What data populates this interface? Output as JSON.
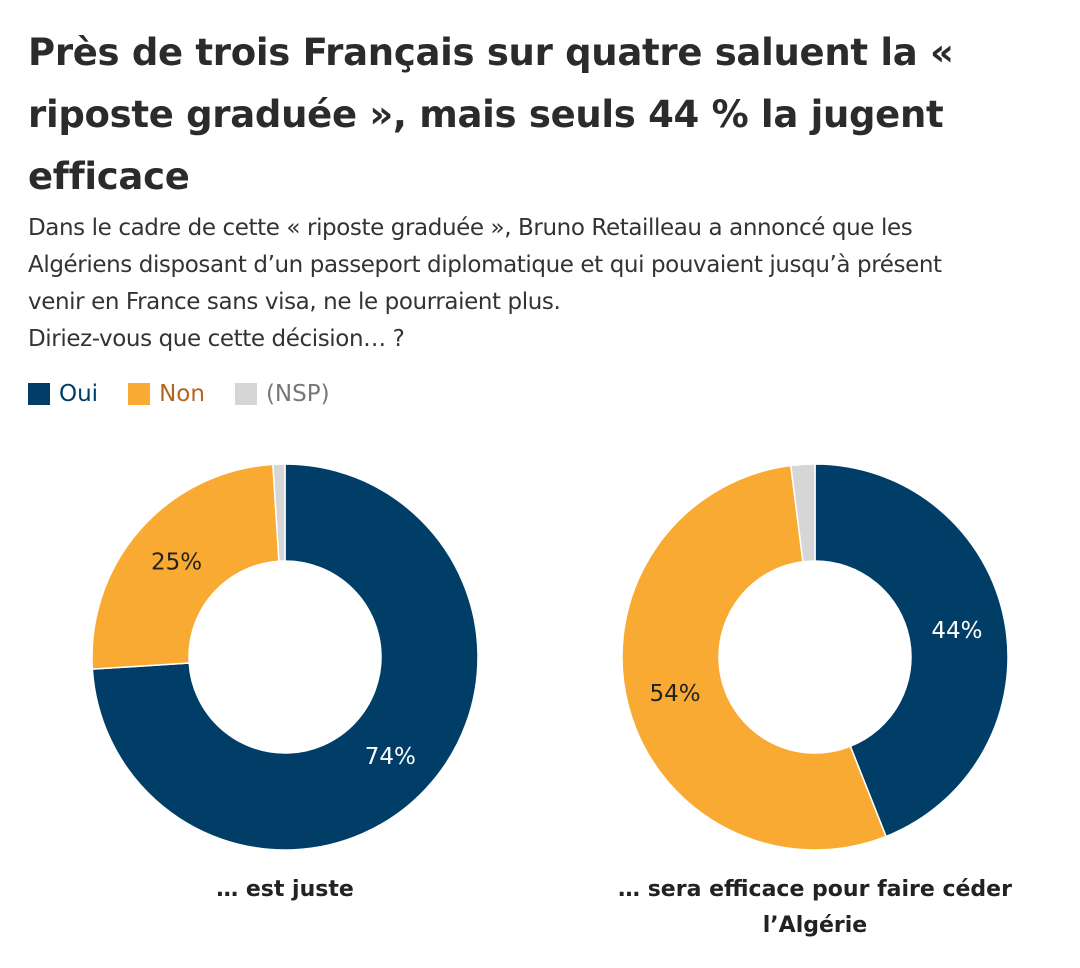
{
  "title": "Près de trois Français sur quatre saluent la « riposte graduée », mais seuls 44 % la jugent efficace",
  "title_lines": [
    "Près de trois Français sur quatre saluent la «",
    "riposte graduée », mais seuls 44 % la jugent",
    "efficace"
  ],
  "subtitle_lines": [
    "Dans le cadre de cette « riposte graduée », Bruno Retailleau a annoncé que les",
    "Algériens disposant d’un passeport diplomatique et qui pouvaient jusqu’à présent",
    "venir en France sans visa, ne le pourraient plus.",
    "Diriez-vous que cette décision… ?"
  ],
  "legend": [
    {
      "label": "Oui",
      "color": "#003e68",
      "text_color": "#003e68"
    },
    {
      "label": "Non",
      "color": "#f9aa33",
      "text_color": "#b5651d"
    },
    {
      "label": "(NSP)",
      "color": "#d6d6d6",
      "text_color": "#777777"
    }
  ],
  "chart_data": [
    {
      "type": "pie",
      "style": "donut",
      "caption_lines": [
        "… est juste"
      ],
      "categories": [
        "Oui",
        "Non",
        "(NSP)"
      ],
      "values": [
        74,
        25,
        1
      ],
      "labels": [
        "74%",
        "25%",
        ""
      ],
      "colors": [
        "#003e68",
        "#f9aa33",
        "#d6d6d6"
      ]
    },
    {
      "type": "pie",
      "style": "donut",
      "caption_lines": [
        "… sera efficace pour faire céder",
        "l’Algérie"
      ],
      "categories": [
        "Oui",
        "Non",
        "(NSP)"
      ],
      "values": [
        44,
        54,
        2
      ],
      "labels": [
        "44%",
        "54%",
        ""
      ],
      "colors": [
        "#003e68",
        "#f9aa33",
        "#d6d6d6"
      ]
    }
  ]
}
